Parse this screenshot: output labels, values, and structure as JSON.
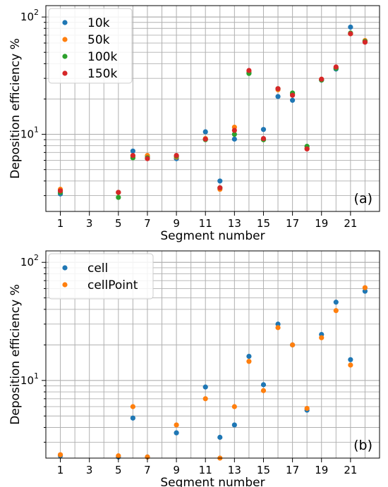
{
  "colors": {
    "blue": "#1f77b4",
    "orange": "#ff7f0e",
    "green": "#2ca02c",
    "red": "#d62728",
    "grid": "#b0b0b0"
  },
  "chart_data": [
    {
      "type": "scatter",
      "panel_label": "(a)",
      "xlabel": "Segment number",
      "ylabel": "Deposition efficiency %",
      "xticks": [
        "1",
        "3",
        "5",
        "7",
        "9",
        "11",
        "13",
        "15",
        "17",
        "19",
        "21"
      ],
      "xlim": [
        0,
        23
      ],
      "ylim": [
        2.2,
        125
      ],
      "yscale": "log",
      "yticks": [
        "10^1",
        "10^2"
      ],
      "grid": true,
      "legend": "top-left",
      "series": [
        {
          "name": "10k",
          "color": "#1f77b4",
          "points": [
            [
              1,
              3.1
            ],
            [
              5,
              3.2
            ],
            [
              6,
              7.2
            ],
            [
              7,
              6.5
            ],
            [
              9,
              6.2
            ],
            [
              11,
              10.5
            ],
            [
              12,
              4.0
            ],
            [
              13,
              9.1
            ],
            [
              14,
              33.5
            ],
            [
              15,
              11.0
            ],
            [
              16,
              21.0
            ],
            [
              17,
              19.5
            ],
            [
              19,
              29.0
            ],
            [
              20,
              36.0
            ],
            [
              21,
              82.0
            ],
            [
              22,
              62.0
            ]
          ]
        },
        {
          "name": "50k",
          "color": "#ff7f0e",
          "points": [
            [
              1,
              3.4
            ],
            [
              5,
              3.2
            ],
            [
              6,
              6.5
            ],
            [
              7,
              6.6
            ],
            [
              9,
              6.4
            ],
            [
              11,
              9.2
            ],
            [
              12,
              3.4
            ],
            [
              13,
              11.5
            ],
            [
              14,
              34.5
            ],
            [
              15,
              9.0
            ],
            [
              16,
              24.0
            ],
            [
              17,
              22.0
            ],
            [
              18,
              7.6
            ],
            [
              19,
              29.5
            ],
            [
              20,
              37.0
            ],
            [
              21,
              72.0
            ],
            [
              22,
              63.0
            ]
          ]
        },
        {
          "name": "100k",
          "color": "#2ca02c",
          "points": [
            [
              1,
              3.2
            ],
            [
              5,
              2.9
            ],
            [
              6,
              6.3
            ],
            [
              7,
              6.3
            ],
            [
              9,
              6.5
            ],
            [
              11,
              9.0
            ],
            [
              12,
              3.5
            ],
            [
              13,
              10.0
            ],
            [
              14,
              33.0
            ],
            [
              15,
              9.0
            ],
            [
              16,
              24.5
            ],
            [
              17,
              22.5
            ],
            [
              18,
              7.9
            ],
            [
              19,
              29.0
            ],
            [
              20,
              36.5
            ],
            [
              21,
              73.0
            ],
            [
              22,
              62.0
            ]
          ]
        },
        {
          "name": "150k",
          "color": "#d62728",
          "points": [
            [
              1,
              3.3
            ],
            [
              5,
              3.2
            ],
            [
              6,
              6.6
            ],
            [
              7,
              6.2
            ],
            [
              9,
              6.6
            ],
            [
              11,
              9.1
            ],
            [
              12,
              3.5
            ],
            [
              13,
              10.8
            ],
            [
              14,
              35.0
            ],
            [
              15,
              9.2
            ],
            [
              16,
              24.5
            ],
            [
              17,
              21.5
            ],
            [
              18,
              7.5
            ],
            [
              19,
              29.5
            ],
            [
              20,
              37.5
            ],
            [
              21,
              72.0
            ],
            [
              22,
              61.0
            ]
          ]
        }
      ]
    },
    {
      "type": "scatter",
      "panel_label": "(b)",
      "xlabel": "Segment number",
      "ylabel": "Deposition efficiency %",
      "xticks": [
        "1",
        "3",
        "5",
        "7",
        "9",
        "11",
        "13",
        "15",
        "17",
        "19",
        "21"
      ],
      "xlim": [
        0,
        23
      ],
      "ylim": [
        2.2,
        125
      ],
      "yscale": "log",
      "yticks": [
        "10^1",
        "10^2"
      ],
      "grid": true,
      "legend": "top-left",
      "series": [
        {
          "name": "cell",
          "color": "#1f77b4",
          "points": [
            [
              1,
              2.3
            ],
            [
              5,
              2.25
            ],
            [
              6,
              4.8
            ],
            [
              7,
              2.25
            ],
            [
              9,
              3.6
            ],
            [
              11,
              8.8
            ],
            [
              12,
              3.3
            ],
            [
              13,
              4.2
            ],
            [
              14,
              16.0
            ],
            [
              15,
              9.2
            ],
            [
              16,
              30.0
            ],
            [
              17,
              20.0
            ],
            [
              18,
              5.6
            ],
            [
              19,
              24.5
            ],
            [
              20,
              46.0
            ],
            [
              21,
              15.0
            ],
            [
              22,
              57.0
            ]
          ]
        },
        {
          "name": "cellPoint",
          "color": "#ff7f0e",
          "points": [
            [
              1,
              2.35
            ],
            [
              5,
              2.3
            ],
            [
              6,
              6.0
            ],
            [
              7,
              2.25
            ],
            [
              9,
              4.2
            ],
            [
              11,
              7.0
            ],
            [
              12,
              2.2
            ],
            [
              13,
              6.0
            ],
            [
              14,
              14.5
            ],
            [
              15,
              8.2
            ],
            [
              16,
              28.0
            ],
            [
              17,
              20.0
            ],
            [
              18,
              5.8
            ],
            [
              19,
              23.0
            ],
            [
              20,
              39.0
            ],
            [
              21,
              13.5
            ],
            [
              22,
              61.0
            ]
          ]
        }
      ]
    }
  ]
}
